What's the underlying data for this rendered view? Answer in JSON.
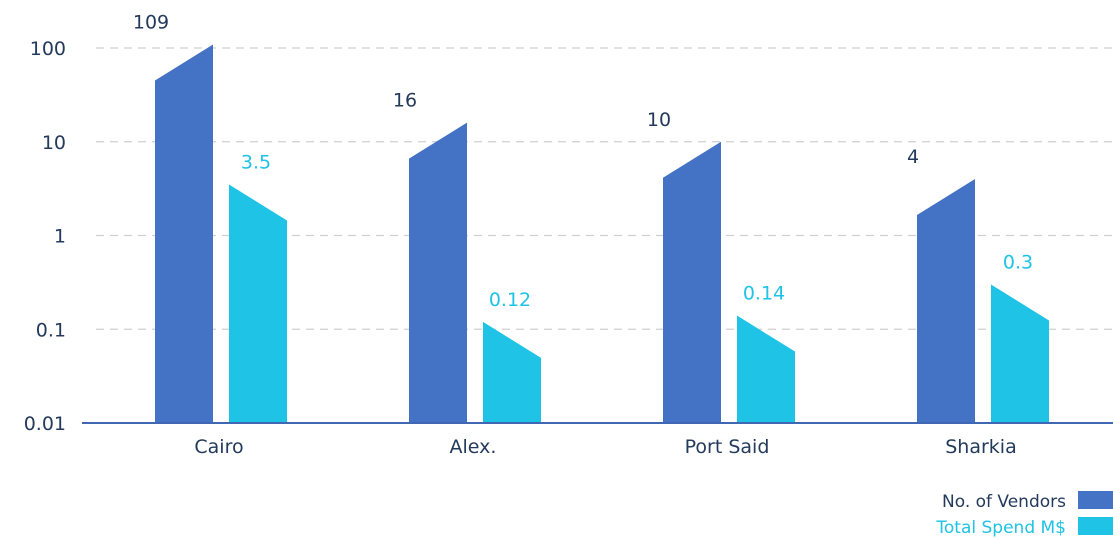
{
  "chart_data": {
    "type": "bar",
    "yscale": "log",
    "ylim": [
      0.01,
      100
    ],
    "yticks": [
      "0.01",
      "0.1",
      "1",
      "10",
      "100"
    ],
    "grid": true,
    "legend_position": "bottom-right",
    "categories": [
      "Cairo",
      "Alex.",
      "Port Said",
      "Sharkia"
    ],
    "series": [
      {
        "name": "No. of Vendors",
        "values": [
          109,
          16,
          10,
          4
        ],
        "labels": [
          "109",
          "16",
          "10",
          "4"
        ],
        "color": "#4472c4"
      },
      {
        "name": "Total Spend M$",
        "values": [
          3.5,
          0.12,
          0.14,
          0.3
        ],
        "labels": [
          "3.5",
          "0.12",
          "0.14",
          "0.3"
        ],
        "color": "#1ec3e6"
      }
    ]
  }
}
